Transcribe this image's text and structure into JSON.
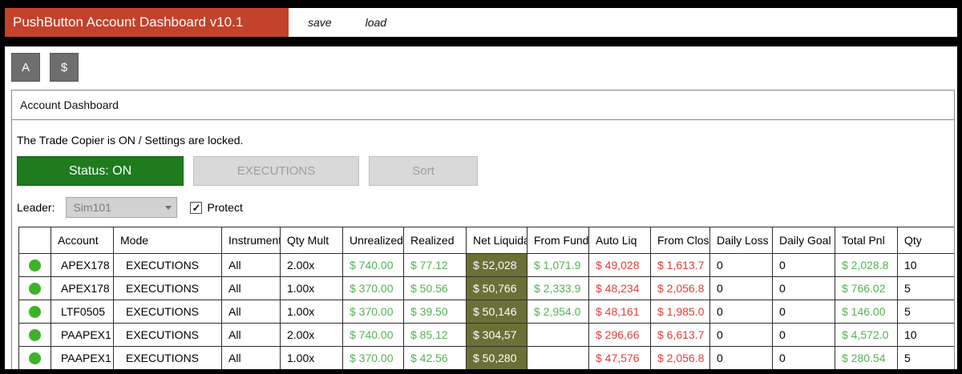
{
  "colors": {
    "title_bar_red": "#C2422B",
    "status_on_green": "#1E7B1E",
    "online_dot_green": "#3DB228",
    "net_liq_cell_bg": "#6B7036",
    "positive_text": "#55B155",
    "negative_text": "#E43D36"
  },
  "icons": {
    "check": "✓"
  },
  "window": {
    "title": "PushButton Account Dashboard v10.1",
    "menu_items": [
      "save",
      "load"
    ]
  },
  "toolbar": {
    "buttons": [
      "A",
      "$"
    ]
  },
  "dashboard": {
    "title": "Account Dashboard",
    "copier_message": "The Trade Copier is ON / Settings are locked.",
    "status_button": "Status: ON",
    "executions_button": "EXECUTIONS",
    "sort_button": "Sort",
    "leader_label": "Leader:",
    "leader_value": "Sim101",
    "protect_label": "Protect",
    "protect_checked": true
  },
  "table": {
    "columns": [
      "",
      "Account",
      "Mode",
      "Instrument",
      "Qty Mult",
      "Unrealized",
      "Realized",
      "Net Liquidation",
      "From Funded",
      "Auto Liq",
      "From Close",
      "Daily Loss",
      "Daily Goal",
      "Total Pnl",
      "Qty"
    ],
    "rows": [
      {
        "online": true,
        "account": "APEX178",
        "mode": "EXECUTIONS",
        "instrument": "All",
        "qty_mult": "2.00x",
        "unrealized": "$ 740.00",
        "realized": "$ 77.12",
        "net_liq": "$ 52,028",
        "from_funded": "$ 1,071.9",
        "auto_liq": "$ 49,028",
        "from_close": "$ 1,613.7",
        "daily_loss": "0",
        "daily_goal": "0",
        "total_pnl": "$ 2,028.8",
        "qty": "10"
      },
      {
        "online": true,
        "account": "APEX178",
        "mode": "EXECUTIONS",
        "instrument": "All",
        "qty_mult": "1.00x",
        "unrealized": "$ 370.00",
        "realized": "$ 50.56",
        "net_liq": "$ 50,766",
        "from_funded": "$ 2,333.9",
        "auto_liq": "$ 48,234",
        "from_close": "$ 2,056.8",
        "daily_loss": "0",
        "daily_goal": "0",
        "total_pnl": "$ 766.02",
        "qty": "5"
      },
      {
        "online": true,
        "account": "LTF0505",
        "mode": "EXECUTIONS",
        "instrument": "All",
        "qty_mult": "1.00x",
        "unrealized": "$ 370.00",
        "realized": "$ 39.50",
        "net_liq": "$ 50,146",
        "from_funded": "$ 2,954.0",
        "auto_liq": "$ 48,161",
        "from_close": "$ 1,985.0",
        "daily_loss": "0",
        "daily_goal": "0",
        "total_pnl": "$ 146.00",
        "qty": "5"
      },
      {
        "online": true,
        "account": "PAAPEX1",
        "mode": "EXECUTIONS",
        "instrument": "All",
        "qty_mult": "2.00x",
        "unrealized": "$ 740.00",
        "realized": "$ 85.12",
        "net_liq": "$ 304,57",
        "from_funded": "",
        "auto_liq": "$ 296,66",
        "from_close": "$ 6,613.7",
        "daily_loss": "0",
        "daily_goal": "0",
        "total_pnl": "$ 4,572.0",
        "qty": "10"
      },
      {
        "online": true,
        "account": "PAAPEX1",
        "mode": "EXECUTIONS",
        "instrument": "All",
        "qty_mult": "1.00x",
        "unrealized": "$ 370.00",
        "realized": "$ 42.56",
        "net_liq": "$ 50,280",
        "from_funded": "",
        "auto_liq": "$ 47,576",
        "from_close": "$ 2,056.8",
        "daily_loss": "0",
        "daily_goal": "0",
        "total_pnl": "$ 280.54",
        "qty": "5"
      }
    ]
  }
}
